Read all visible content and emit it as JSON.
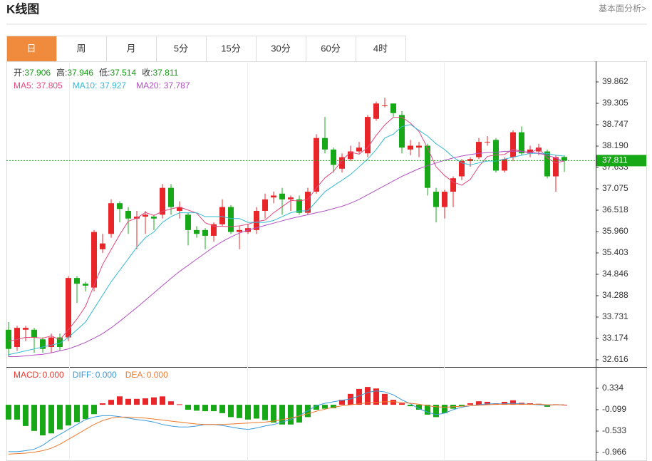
{
  "header": {
    "title": "K线图",
    "link": "基本面分析>"
  },
  "tabs": [
    "日",
    "周",
    "月",
    "5分",
    "15分",
    "30分",
    "60分",
    "4时"
  ],
  "chart_data": [
    {
      "type": "candlestick",
      "ohlc_labels": [
        "开:",
        "高:",
        "低:",
        "收:"
      ],
      "ohlc_color": "#149a14",
      "up_color": "#e8262a",
      "down_color": "#17a817",
      "ylim": [
        32.467,
        40.364
      ],
      "yticks": [
        39.862,
        39.305,
        38.747,
        {
          "value": 38.19,
          "label": "38.190"
        },
        37.633,
        37.075,
        36.518,
        {
          "value": 35.96,
          "label": "35.960"
        },
        35.403,
        34.846,
        34.288,
        33.731,
        33.174,
        32.616
      ],
      "open": [
        33.4,
        32.95,
        33.4,
        33.4,
        33.15,
        32.95,
        33.2,
        33.2,
        34.75,
        34.6,
        34.5,
        35.5,
        35.9,
        36.7,
        36.5,
        36.3,
        36.35,
        36.35,
        36.4,
        37.1,
        36.5,
        36.4,
        36.0,
        36.0,
        35.85,
        36.15,
        36.6,
        35.95,
        35.95,
        36.0,
        36.5,
        36.85,
        36.95,
        36.8,
        36.8,
        36.45,
        37.0,
        38.4,
        38.1,
        37.6,
        37.85,
        38.05,
        38.0,
        38.9,
        39.25,
        39.3,
        39.0,
        38.1,
        38.15,
        38.2,
        37.0,
        36.6,
        37.0,
        37.4,
        37.8,
        37.9,
        38.3,
        38.35,
        37.55,
        37.9,
        38.55,
        38.0,
        38.05,
        38.05,
        37.4,
        37.906
      ],
      "high": [
        33.6,
        33.5,
        33.5,
        33.45,
        33.2,
        33.3,
        33.3,
        34.8,
        34.8,
        34.65,
        36.0,
        35.9,
        36.8,
        36.75,
        36.6,
        36.5,
        36.5,
        36.4,
        37.2,
        37.2,
        36.75,
        36.45,
        36.1,
        36.05,
        36.2,
        36.8,
        36.65,
        36.1,
        36.15,
        36.6,
        36.95,
        37.0,
        37.1,
        36.9,
        36.9,
        37.1,
        38.5,
        38.95,
        38.15,
        38.0,
        38.2,
        38.3,
        39.0,
        39.35,
        39.45,
        39.3,
        39.1,
        38.35,
        38.3,
        38.25,
        37.1,
        37.05,
        37.4,
        37.85,
        37.9,
        38.4,
        38.45,
        38.4,
        37.9,
        38.6,
        38.7,
        38.2,
        38.25,
        38.1,
        37.95,
        37.946
      ],
      "low": [
        32.7,
        32.85,
        33.1,
        32.8,
        32.8,
        32.8,
        32.85,
        33.1,
        34.1,
        34.4,
        34.4,
        35.4,
        35.8,
        36.2,
        35.9,
        35.5,
        35.9,
        36.0,
        36.3,
        36.4,
        36.3,
        35.6,
        35.8,
        35.5,
        35.7,
        36.1,
        35.9,
        35.5,
        35.9,
        35.9,
        36.3,
        36.7,
        36.4,
        36.5,
        36.4,
        36.4,
        36.95,
        38.0,
        37.5,
        37.5,
        37.8,
        38.0,
        37.9,
        38.85,
        39.2,
        38.95,
        38.0,
        37.95,
        37.9,
        36.9,
        36.2,
        36.3,
        36.6,
        37.3,
        37.65,
        37.85,
        38.2,
        37.5,
        37.5,
        37.8,
        37.95,
        37.9,
        37.95,
        37.35,
        37.0,
        37.514
      ],
      "close": [
        32.9,
        33.45,
        33.45,
        33.2,
        32.9,
        33.2,
        32.95,
        34.75,
        34.6,
        34.55,
        35.95,
        35.65,
        36.7,
        36.55,
        36.3,
        36.35,
        36.4,
        36.3,
        37.1,
        36.6,
        36.6,
        36.0,
        35.9,
        35.85,
        36.15,
        36.6,
        35.95,
        36.0,
        36.05,
        36.5,
        36.8,
        36.9,
        36.8,
        36.85,
        36.45,
        37.0,
        38.4,
        38.1,
        37.7,
        37.9,
        38.05,
        38.15,
        38.95,
        39.3,
        39.25,
        39.05,
        38.15,
        38.2,
        38.2,
        37.1,
        36.6,
        37.0,
        37.35,
        37.8,
        37.85,
        38.3,
        38.3,
        37.55,
        37.85,
        38.55,
        38.0,
        38.1,
        38.15,
        37.4,
        37.9,
        37.811
      ],
      "series": [
        {
          "name": "MA5:",
          "color": "#e3487f",
          "values": [
            33.1,
            33.15,
            33.2,
            33.2,
            33.18,
            33.24,
            33.14,
            33.4,
            33.68,
            34.01,
            34.56,
            35.1,
            35.49,
            35.88,
            36.23,
            36.31,
            36.46,
            36.38,
            36.49,
            36.55,
            36.6,
            36.52,
            36.44,
            36.19,
            36.1,
            36.1,
            36.09,
            36.11,
            36.15,
            36.22,
            36.26,
            36.45,
            36.61,
            36.77,
            36.76,
            36.8,
            37.1,
            37.36,
            37.53,
            37.82,
            38.03,
            37.98,
            38.15,
            38.47,
            38.74,
            38.94,
            38.94,
            38.79,
            38.57,
            38.14,
            37.65,
            37.42,
            37.25,
            37.17,
            37.32,
            37.66,
            37.92,
            37.96,
            37.97,
            38.11,
            38.05,
            38.01,
            38.13,
            37.88,
            37.75,
            37.805
          ]
        },
        {
          "name": "MA10:",
          "color": "#36b9d2",
          "values": [
            32.75,
            32.8,
            32.85,
            32.9,
            32.95,
            33.0,
            33.05,
            33.2,
            33.4,
            33.6,
            33.95,
            34.3,
            34.65,
            34.95,
            35.25,
            35.55,
            35.8,
            35.95,
            36.2,
            36.35,
            36.45,
            36.45,
            36.45,
            36.35,
            36.35,
            36.35,
            36.3,
            36.3,
            36.2,
            36.2,
            36.2,
            36.25,
            36.35,
            36.45,
            36.5,
            36.5,
            36.75,
            37.0,
            37.15,
            37.3,
            37.45,
            37.65,
            37.85,
            38.1,
            38.4,
            38.5,
            38.7,
            38.75,
            38.6,
            38.45,
            38.25,
            38.1,
            37.9,
            37.75,
            37.7,
            37.75,
            37.8,
            37.8,
            37.85,
            37.9,
            37.95,
            38.0,
            38.0,
            38.0,
            37.95,
            37.927
          ]
        },
        {
          "name": "MA20:",
          "color": "#b24fc2",
          "values": [
            32.7,
            32.7,
            32.72,
            32.74,
            32.76,
            32.8,
            32.85,
            32.9,
            32.98,
            33.07,
            33.18,
            33.3,
            33.45,
            33.62,
            33.8,
            33.98,
            34.17,
            34.36,
            34.55,
            34.74,
            34.92,
            35.08,
            35.24,
            35.4,
            35.56,
            35.7,
            35.82,
            35.92,
            36.0,
            36.06,
            36.12,
            36.18,
            36.24,
            36.3,
            36.35,
            36.4,
            36.45,
            36.5,
            36.56,
            36.62,
            36.7,
            36.8,
            36.92,
            37.04,
            37.16,
            37.28,
            37.4,
            37.5,
            37.6,
            37.68,
            37.75,
            37.82,
            37.88,
            37.93,
            37.97,
            38.0,
            38.02,
            38.03,
            38.05,
            38.06,
            38.05,
            38.03,
            38.0,
            37.95,
            37.88,
            37.787
          ]
        }
      ]
    },
    {
      "type": "macd",
      "ylim": [
        -1.11,
        0.737
      ],
      "yticks": [
        0.334,
        -0.099,
        -0.533,
        -0.966
      ],
      "up_color": "#e8262a",
      "down_color": "#17a817",
      "series": [
        {
          "name": "MACD:",
          "color": "#e8392e",
          "current": {
            "value": 0,
            "label": "0.000"
          },
          "values": [
            -0.3,
            -0.3,
            -0.43,
            -0.53,
            -0.62,
            -0.58,
            -0.5,
            -0.42,
            -0.35,
            -0.29,
            -0.19,
            0.03,
            0.1,
            0.17,
            0.12,
            0.12,
            0.13,
            0.15,
            0.17,
            0.07,
            0.01,
            -0.1,
            -0.12,
            -0.13,
            -0.13,
            -0.17,
            -0.25,
            -0.27,
            -0.3,
            -0.28,
            -0.31,
            -0.36,
            -0.4,
            -0.4,
            -0.36,
            -0.25,
            -0.1,
            -0.08,
            -0.07,
            0.1,
            0.22,
            0.32,
            0.36,
            0.33,
            0.22,
            0.1,
            0.03,
            -0.03,
            -0.1,
            -0.2,
            -0.25,
            -0.17,
            -0.08,
            -0.03,
            0.03,
            0.07,
            0.06,
            0.03,
            0.06,
            0.09,
            0.04,
            0.03,
            0.02,
            -0.04,
            0.01,
            0
          ]
        },
        {
          "name": "DIFF:",
          "color": "#3b9bdb",
          "current": {
            "value": 0,
            "label": "0.000"
          },
          "values": [
            -0.95,
            -0.95,
            -0.93,
            -0.9,
            -0.82,
            -0.7,
            -0.6,
            -0.5,
            -0.4,
            -0.3,
            -0.25,
            -0.22,
            -0.22,
            -0.24,
            -0.27,
            -0.3,
            -0.32,
            -0.35,
            -0.4,
            -0.43,
            -0.45,
            -0.45,
            -0.43,
            -0.4,
            -0.4,
            -0.42,
            -0.45,
            -0.48,
            -0.5,
            -0.47,
            -0.43,
            -0.4,
            -0.35,
            -0.3,
            -0.22,
            -0.12,
            -0.02,
            0.03,
            0.06,
            0.09,
            0.12,
            0.18,
            0.25,
            0.28,
            0.26,
            0.2,
            0.1,
            0.02,
            -0.08,
            -0.15,
            -0.2,
            -0.17,
            -0.1,
            -0.05,
            -0.02,
            0.0,
            0.02,
            0.02,
            0.02,
            0.03,
            0.02,
            0.01,
            0.0,
            -0.01,
            0.0,
            0
          ]
        },
        {
          "name": "DEA:",
          "color": "#ee7a2c",
          "current": {
            "value": 0,
            "label": "0.000"
          },
          "values": [
            -1.0,
            -0.99,
            -0.98,
            -0.96,
            -0.93,
            -0.88,
            -0.8,
            -0.7,
            -0.6,
            -0.5,
            -0.4,
            -0.32,
            -0.27,
            -0.25,
            -0.25,
            -0.26,
            -0.27,
            -0.29,
            -0.31,
            -0.33,
            -0.35,
            -0.37,
            -0.39,
            -0.4,
            -0.4,
            -0.4,
            -0.39,
            -0.38,
            -0.37,
            -0.36,
            -0.35,
            -0.33,
            -0.3,
            -0.27,
            -0.23,
            -0.18,
            -0.13,
            -0.09,
            -0.05,
            -0.02,
            0.0,
            0.02,
            0.04,
            0.05,
            0.06,
            0.06,
            0.05,
            0.03,
            0.01,
            -0.02,
            -0.04,
            -0.05,
            -0.04,
            -0.03,
            -0.02,
            -0.01,
            0.0,
            0.01,
            0.01,
            0.01,
            0.01,
            0.01,
            0.01,
            0.0,
            0.0,
            0
          ]
        }
      ]
    }
  ]
}
